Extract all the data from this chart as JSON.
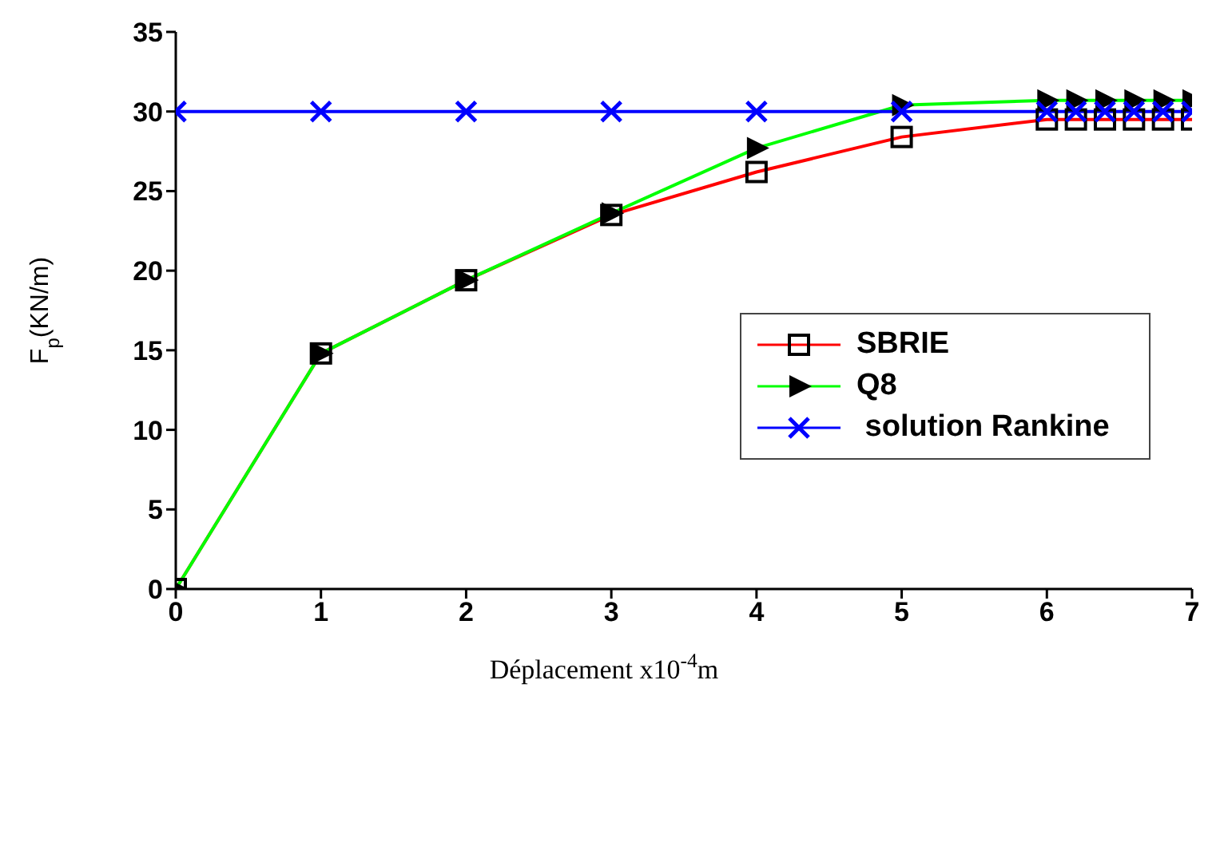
{
  "chart_data": {
    "type": "line",
    "xlabel": "Déplacement x10$^{-4}$m",
    "ylabel": "F$_{p}$(KN/m)",
    "xlim": [
      0,
      7
    ],
    "xticks": [
      0,
      1,
      2,
      3,
      4,
      5,
      6,
      7
    ],
    "ylim": [
      0,
      35
    ],
    "yticks": [
      0,
      5,
      10,
      15,
      20,
      25,
      30,
      35
    ],
    "grid": false,
    "legend": "right",
    "line_style": "solid",
    "series": [
      {
        "name": "SBRIE",
        "color": "#ff0000",
        "marker": "square",
        "x": [
          0,
          1,
          2,
          3,
          4,
          5,
          6,
          6.2,
          6.4,
          6.6,
          6.8,
          7
        ],
        "values": [
          0,
          14.8,
          19.4,
          23.5,
          26.2,
          28.4,
          29.5,
          29.5,
          29.5,
          29.5,
          29.5,
          29.5
        ]
      },
      {
        "name": "Q8",
        "color": "#00ff00",
        "marker": "triangle",
        "x": [
          0,
          1,
          2,
          3,
          4,
          5,
          6,
          6.2,
          6.4,
          6.6,
          6.8,
          7
        ],
        "values": [
          0,
          14.8,
          19.4,
          23.6,
          27.7,
          30.4,
          30.7,
          30.7,
          30.7,
          30.7,
          30.7,
          30.7
        ]
      },
      {
        "name": " solution Rankine",
        "color": "#0000ff",
        "marker": "cross",
        "x": [
          0,
          1,
          2,
          3,
          4,
          5,
          6,
          6.2,
          6.4,
          6.6,
          6.8,
          7
        ],
        "values": [
          30,
          30,
          30,
          30,
          30,
          30,
          30,
          30,
          30,
          30,
          30,
          30
        ]
      }
    ]
  }
}
